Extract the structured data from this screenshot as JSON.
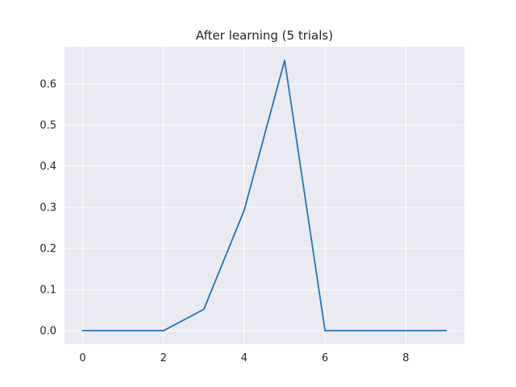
{
  "chart_data": {
    "type": "line",
    "title": "After learning (5 trials)",
    "xlabel": "",
    "ylabel": "",
    "x": [
      0,
      1,
      2,
      3,
      4,
      5,
      6,
      7,
      8,
      9
    ],
    "series": [
      {
        "values": [
          0,
          0,
          0,
          0.052,
          0.293,
          0.657,
          0,
          0,
          0,
          0
        ]
      }
    ],
    "xlim": [
      -0.45,
      9.45
    ],
    "ylim": [
      -0.033,
      0.69
    ],
    "xticks": [
      0,
      2,
      4,
      6,
      8
    ],
    "yticks": [
      0.0,
      0.1,
      0.2,
      0.3,
      0.4,
      0.5,
      0.6
    ],
    "xtick_labels": [
      "0",
      "2",
      "4",
      "6",
      "8"
    ],
    "ytick_labels": [
      "0.0",
      "0.1",
      "0.2",
      "0.3",
      "0.4",
      "0.5",
      "0.6"
    ],
    "grid": true,
    "style": "seaborn-darkgrid",
    "colors": {
      "background": "#eaeaf2",
      "grid": "#ffffff",
      "line": "#1f77b4",
      "text": "#262626"
    }
  }
}
